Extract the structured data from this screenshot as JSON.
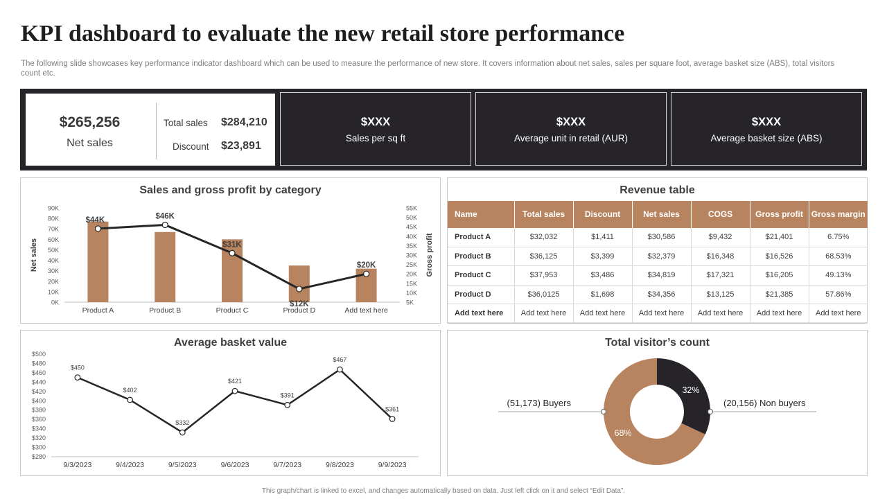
{
  "header": {
    "title": "KPI dashboard to evaluate the new retail store performance",
    "subtitle": "The following slide showcases key performance indicator dashboard which can be used to measure the performance of new store. It covers information about net sales, sales per square foot, average basket size (ABS), total visitors count etc."
  },
  "kpis": {
    "net_sales_value": "$265,256",
    "net_sales_label": "Net sales",
    "total_sales_label": "Total sales",
    "total_sales_value": "$284,210",
    "discount_label": "Discount",
    "discount_value": "$23,891",
    "cards": [
      {
        "value": "$XXX",
        "label": "Sales per sq ft"
      },
      {
        "value": "$XXX",
        "label": "Average  unit in retail (AUR)"
      },
      {
        "value": "$XXX",
        "label": "Average  basket size (ABS)"
      }
    ]
  },
  "revenue_table": {
    "title": "Revenue table",
    "headers": [
      "Name",
      "Total sales",
      "Discount",
      "Net sales",
      "COGS",
      "Gross profit",
      "Gross margin"
    ],
    "rows": [
      [
        "Product A",
        "$32,032",
        "$1,411",
        "$30,586",
        "$9,432",
        "$21,401",
        "6.75%"
      ],
      [
        "Product B",
        "$36,125",
        "$3,399",
        "$32,379",
        "$16,348",
        "$16,526",
        "68.53%"
      ],
      [
        "Product C",
        "$37,953",
        "$3,486",
        "$34,819",
        "$17,321",
        "$16,205",
        "49.13%"
      ],
      [
        "Product D",
        "$36,0125",
        "$1,698",
        "$34,356",
        "$13,125",
        "$21,385",
        "57.86%"
      ],
      [
        "Add text here",
        "Add text here",
        "Add text here",
        "Add text here",
        "Add text here",
        "Add text here",
        "Add text here"
      ]
    ]
  },
  "footer": "This graph/chart is linked to excel, and changes automatically based on data. Just left click on it and select “Edit Data”.",
  "colors": {
    "bar": "#b8845f",
    "dark": "#262429",
    "line": "#262626"
  },
  "chart_data": [
    {
      "type": "bar",
      "title": "Sales and gross profit by category",
      "categories": [
        "Product A",
        "Product B",
        "Product C",
        "Product D",
        "Add text here"
      ],
      "ylabel": "Net sales",
      "y2label": "Gross profit",
      "ylim": [
        0,
        90000
      ],
      "y2lim": [
        5000,
        55000
      ],
      "yticks": [
        "0K",
        "10K",
        "20K",
        "30K",
        "40K",
        "50K",
        "60K",
        "70K",
        "80K",
        "90K"
      ],
      "y2ticks": [
        "5K",
        "10K",
        "15K",
        "20K",
        "25K",
        "30K",
        "35K",
        "40K",
        "45K",
        "50K",
        "55K"
      ],
      "series": [
        {
          "type": "bar",
          "values": [
            77000,
            67000,
            60000,
            35000,
            32000
          ]
        },
        {
          "type": "line",
          "values": [
            44000,
            46000,
            31000,
            12000,
            20000
          ],
          "labels": [
            "$44K",
            "$46K",
            "$31K",
            "$12K",
            "$20K"
          ]
        }
      ]
    },
    {
      "type": "line",
      "title": "Average basket value",
      "x": [
        "9/3/2023",
        "9/4/2023",
        "9/5/2023",
        "9/6/2023",
        "9/7/2023",
        "9/8/2023",
        "9/9/2023"
      ],
      "values": [
        450,
        402,
        332,
        421,
        391,
        467,
        361
      ],
      "labels": [
        "$450",
        "$402",
        "$332",
        "$421",
        "$391",
        "$467",
        "$361"
      ],
      "ylim": [
        280,
        500
      ],
      "yticks": [
        "$280",
        "$300",
        "$320",
        "$340",
        "$360",
        "$380",
        "$400",
        "$420",
        "$440",
        "$460",
        "$480",
        "$500"
      ]
    },
    {
      "type": "pie",
      "title": "Total visitor’s count",
      "slices": [
        {
          "label": "Non buyers",
          "percent": 32,
          "percent_label": "32%",
          "callout": "(20,156) Non buyers",
          "color": "#262429"
        },
        {
          "label": "Buyers",
          "percent": 68,
          "percent_label": "68%",
          "callout": "(51,173) Buyers",
          "color": "#b8845f"
        }
      ]
    }
  ]
}
